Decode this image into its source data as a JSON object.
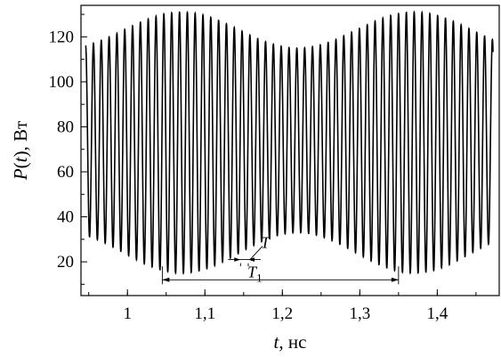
{
  "chart_data": {
    "type": "line",
    "title": "",
    "xlabel": {
      "var": "t",
      "rest": ", нс"
    },
    "ylabel": {
      "var": "P",
      "paren_open": "(",
      "arg": "t",
      "paren_close": ")",
      "rest": ", Вт"
    },
    "xlim": [
      0.94,
      1.48
    ],
    "ylim": [
      5,
      134
    ],
    "x_ticks": [
      1.0,
      1.1,
      1.2,
      1.3,
      1.4
    ],
    "x_tick_labels": [
      "1",
      "1,1",
      "1,2",
      "1,3",
      "1,4"
    ],
    "y_ticks": [
      20,
      40,
      60,
      80,
      100,
      120
    ],
    "y_tick_labels": [
      "20",
      "40",
      "60",
      "80",
      "100",
      "120"
    ],
    "grid": false,
    "series": [
      {
        "name": "",
        "color": "#000000",
        "carrier_period_ns": 0.0101,
        "envelope_period_ns": 0.3,
        "envelope_max_ns": [
          1.07,
          1.37
        ],
        "peak_max": 131,
        "peak_min": 115,
        "trough_min": 15,
        "trough_max": 33
      }
    ],
    "annotations": [
      {
        "label": "T",
        "sub": "",
        "from": 1.146,
        "to": 1.156,
        "level": 21
      },
      {
        "label": "T",
        "sub": "1",
        "from": 1.045,
        "to": 1.35,
        "level": 12
      }
    ]
  }
}
